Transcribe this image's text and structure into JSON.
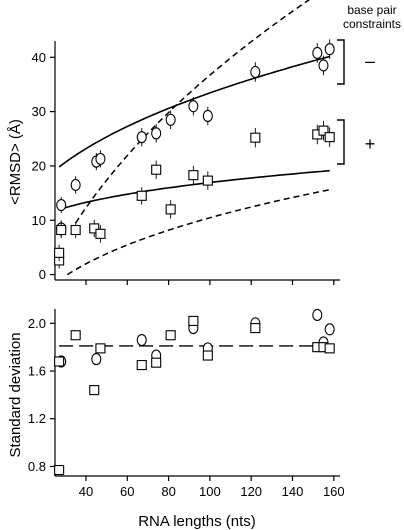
{
  "chart_data": [
    {
      "type": "scatter",
      "panel": "top",
      "ylabel": "<RMSD> (Å)",
      "xlabel": "",
      "xlim": [
        25,
        163
      ],
      "ylim": [
        -1,
        43
      ],
      "yticks": [
        0,
        10,
        20,
        30,
        40
      ],
      "grid": false,
      "annotation": {
        "title": "base pair\nconstraints",
        "title_lines": [
          "base pair",
          "constraints"
        ],
        "minus_label": "–",
        "plus_label": "+"
      },
      "series": [
        {
          "marker": "circle",
          "points": [
            {
              "x": 28,
              "y": 8.5,
              "err": 1.5
            },
            {
              "x": 28,
              "y": 12.8,
              "err": 1.5
            },
            {
              "x": 35,
              "y": 16.5,
              "err": 1.6
            },
            {
              "x": 45,
              "y": 20.8,
              "err": 1.6
            },
            {
              "x": 47,
              "y": 21.3,
              "err": 1.6
            },
            {
              "x": 67,
              "y": 25.3,
              "err": 1.7
            },
            {
              "x": 74,
              "y": 26.0,
              "err": 1.7
            },
            {
              "x": 81,
              "y": 28.5,
              "err": 1.7
            },
            {
              "x": 92,
              "y": 31.0,
              "err": 1.7
            },
            {
              "x": 99,
              "y": 29.2,
              "err": 1.7
            },
            {
              "x": 122,
              "y": 37.3,
              "err": 1.8
            },
            {
              "x": 152,
              "y": 40.8,
              "err": 1.8
            },
            {
              "x": 155,
              "y": 38.5,
              "err": 1.8
            },
            {
              "x": 158,
              "y": 41.5,
              "err": 1.8
            }
          ],
          "fit": {
            "style": "solid",
            "a": 5.3,
            "b": 0.4,
            "x0": 27,
            "x1": 158
          }
        },
        {
          "marker": "square",
          "points": [
            {
              "x": 27,
              "y": 2.6,
              "err": 1.5
            },
            {
              "x": 27,
              "y": 4.0,
              "err": 1.5
            },
            {
              "x": 28,
              "y": 8.2,
              "err": 1.5
            },
            {
              "x": 35,
              "y": 8.2,
              "err": 1.5
            },
            {
              "x": 44,
              "y": 8.5,
              "err": 1.6
            },
            {
              "x": 47,
              "y": 7.5,
              "err": 1.6
            },
            {
              "x": 67,
              "y": 14.5,
              "err": 1.6
            },
            {
              "x": 74,
              "y": 19.3,
              "err": 1.7
            },
            {
              "x": 81,
              "y": 12.0,
              "err": 1.7
            },
            {
              "x": 92,
              "y": 18.3,
              "err": 1.7
            },
            {
              "x": 99,
              "y": 17.3,
              "err": 1.7
            },
            {
              "x": 122,
              "y": 25.2,
              "err": 1.8
            },
            {
              "x": 152,
              "y": 25.8,
              "err": 1.8
            },
            {
              "x": 155,
              "y": 26.5,
              "err": 1.8
            },
            {
              "x": 158,
              "y": 25.3,
              "err": 1.8
            }
          ],
          "fit": {
            "style": "solid",
            "a": 5.0,
            "b": 0.265,
            "x0": 27,
            "x1": 158
          }
        }
      ],
      "dashed_curves": [
        {
          "a": 9.7,
          "b": 0.44,
          "x0": 35,
          "x1": 158
        },
        {
          "a": 9.2,
          "b": 0.295,
          "x0": 31,
          "x1": 158
        }
      ]
    },
    {
      "type": "scatter",
      "panel": "bottom",
      "ylabel": "Standard deviation",
      "xlabel": "RNA lengths (nts)",
      "xlim": [
        25,
        163
      ],
      "ylim": [
        0.72,
        2.12
      ],
      "xticks": [
        40,
        60,
        80,
        100,
        120,
        140,
        160
      ],
      "yticks": [
        0.8,
        1.2,
        1.6,
        2.0
      ],
      "ytick_labels": [
        "0.8",
        "1.2",
        "1.6",
        "2.0"
      ],
      "grid": false,
      "reference_line": {
        "y": 1.81,
        "style": "dashed"
      },
      "series": [
        {
          "marker": "circle",
          "points": [
            {
              "x": 28,
              "y": 1.68
            },
            {
              "x": 45,
              "y": 1.7
            },
            {
              "x": 67,
              "y": 1.86
            },
            {
              "x": 74,
              "y": 1.73
            },
            {
              "x": 92,
              "y": 1.96
            },
            {
              "x": 99,
              "y": 1.79
            },
            {
              "x": 122,
              "y": 2.0
            },
            {
              "x": 152,
              "y": 2.07
            },
            {
              "x": 155,
              "y": 1.84
            },
            {
              "x": 158,
              "y": 1.95
            }
          ]
        },
        {
          "marker": "square",
          "points": [
            {
              "x": 27,
              "y": 1.68
            },
            {
              "x": 27,
              "y": 0.77
            },
            {
              "x": 35,
              "y": 1.9
            },
            {
              "x": 44,
              "y": 1.44
            },
            {
              "x": 47,
              "y": 1.79
            },
            {
              "x": 67,
              "y": 1.65
            },
            {
              "x": 74,
              "y": 1.67
            },
            {
              "x": 81,
              "y": 1.9
            },
            {
              "x": 92,
              "y": 2.02
            },
            {
              "x": 99,
              "y": 1.73
            },
            {
              "x": 122,
              "y": 1.96
            },
            {
              "x": 152,
              "y": 1.8
            },
            {
              "x": 155,
              "y": 1.8
            },
            {
              "x": 158,
              "y": 1.79
            }
          ]
        }
      ]
    }
  ]
}
